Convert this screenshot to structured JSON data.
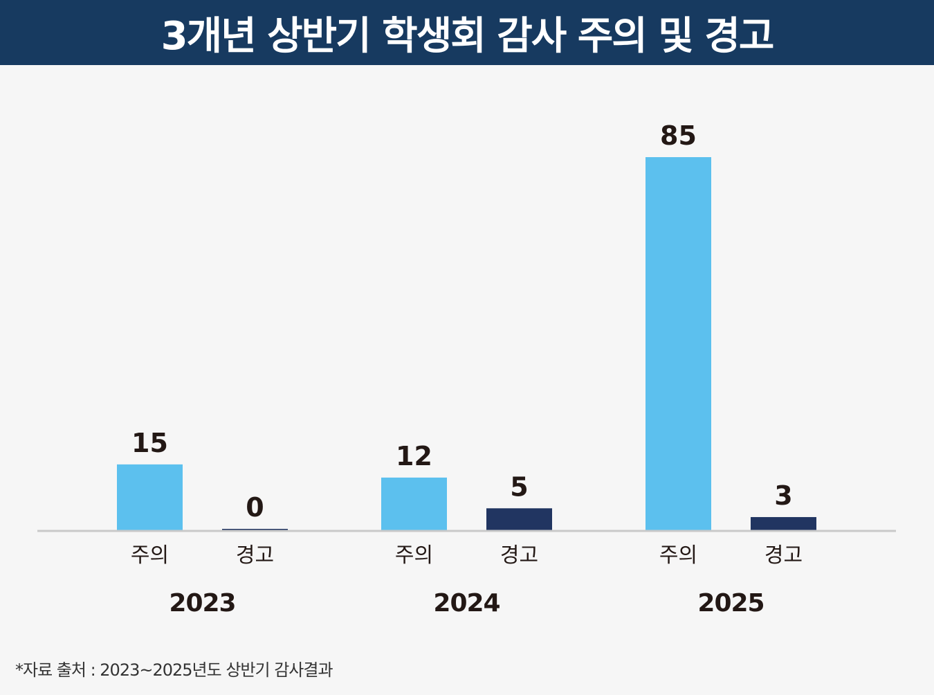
{
  "title": "3개년 상반기 학생회 감사 주의 및 경고",
  "source": "*자료 출처 : 2023~2025년도 상반기 감사결과",
  "colors": {
    "header_bg": "#173a60",
    "주의": "#5cc0ee",
    "경고": "#213561",
    "axis": "#c9c9c9",
    "label": "#231815"
  },
  "chart_data": {
    "type": "bar",
    "title": "3개년 상반기 학생회 감사 주의 및 경고",
    "categories": [
      "2023",
      "2024",
      "2025"
    ],
    "series": [
      {
        "name": "주의",
        "values": [
          15,
          12,
          85
        ]
      },
      {
        "name": "경고",
        "values": [
          0,
          5,
          3
        ]
      }
    ],
    "xlabel": "",
    "ylabel": "",
    "ylim": [
      0,
      85
    ],
    "grid": false,
    "legend": "none"
  }
}
